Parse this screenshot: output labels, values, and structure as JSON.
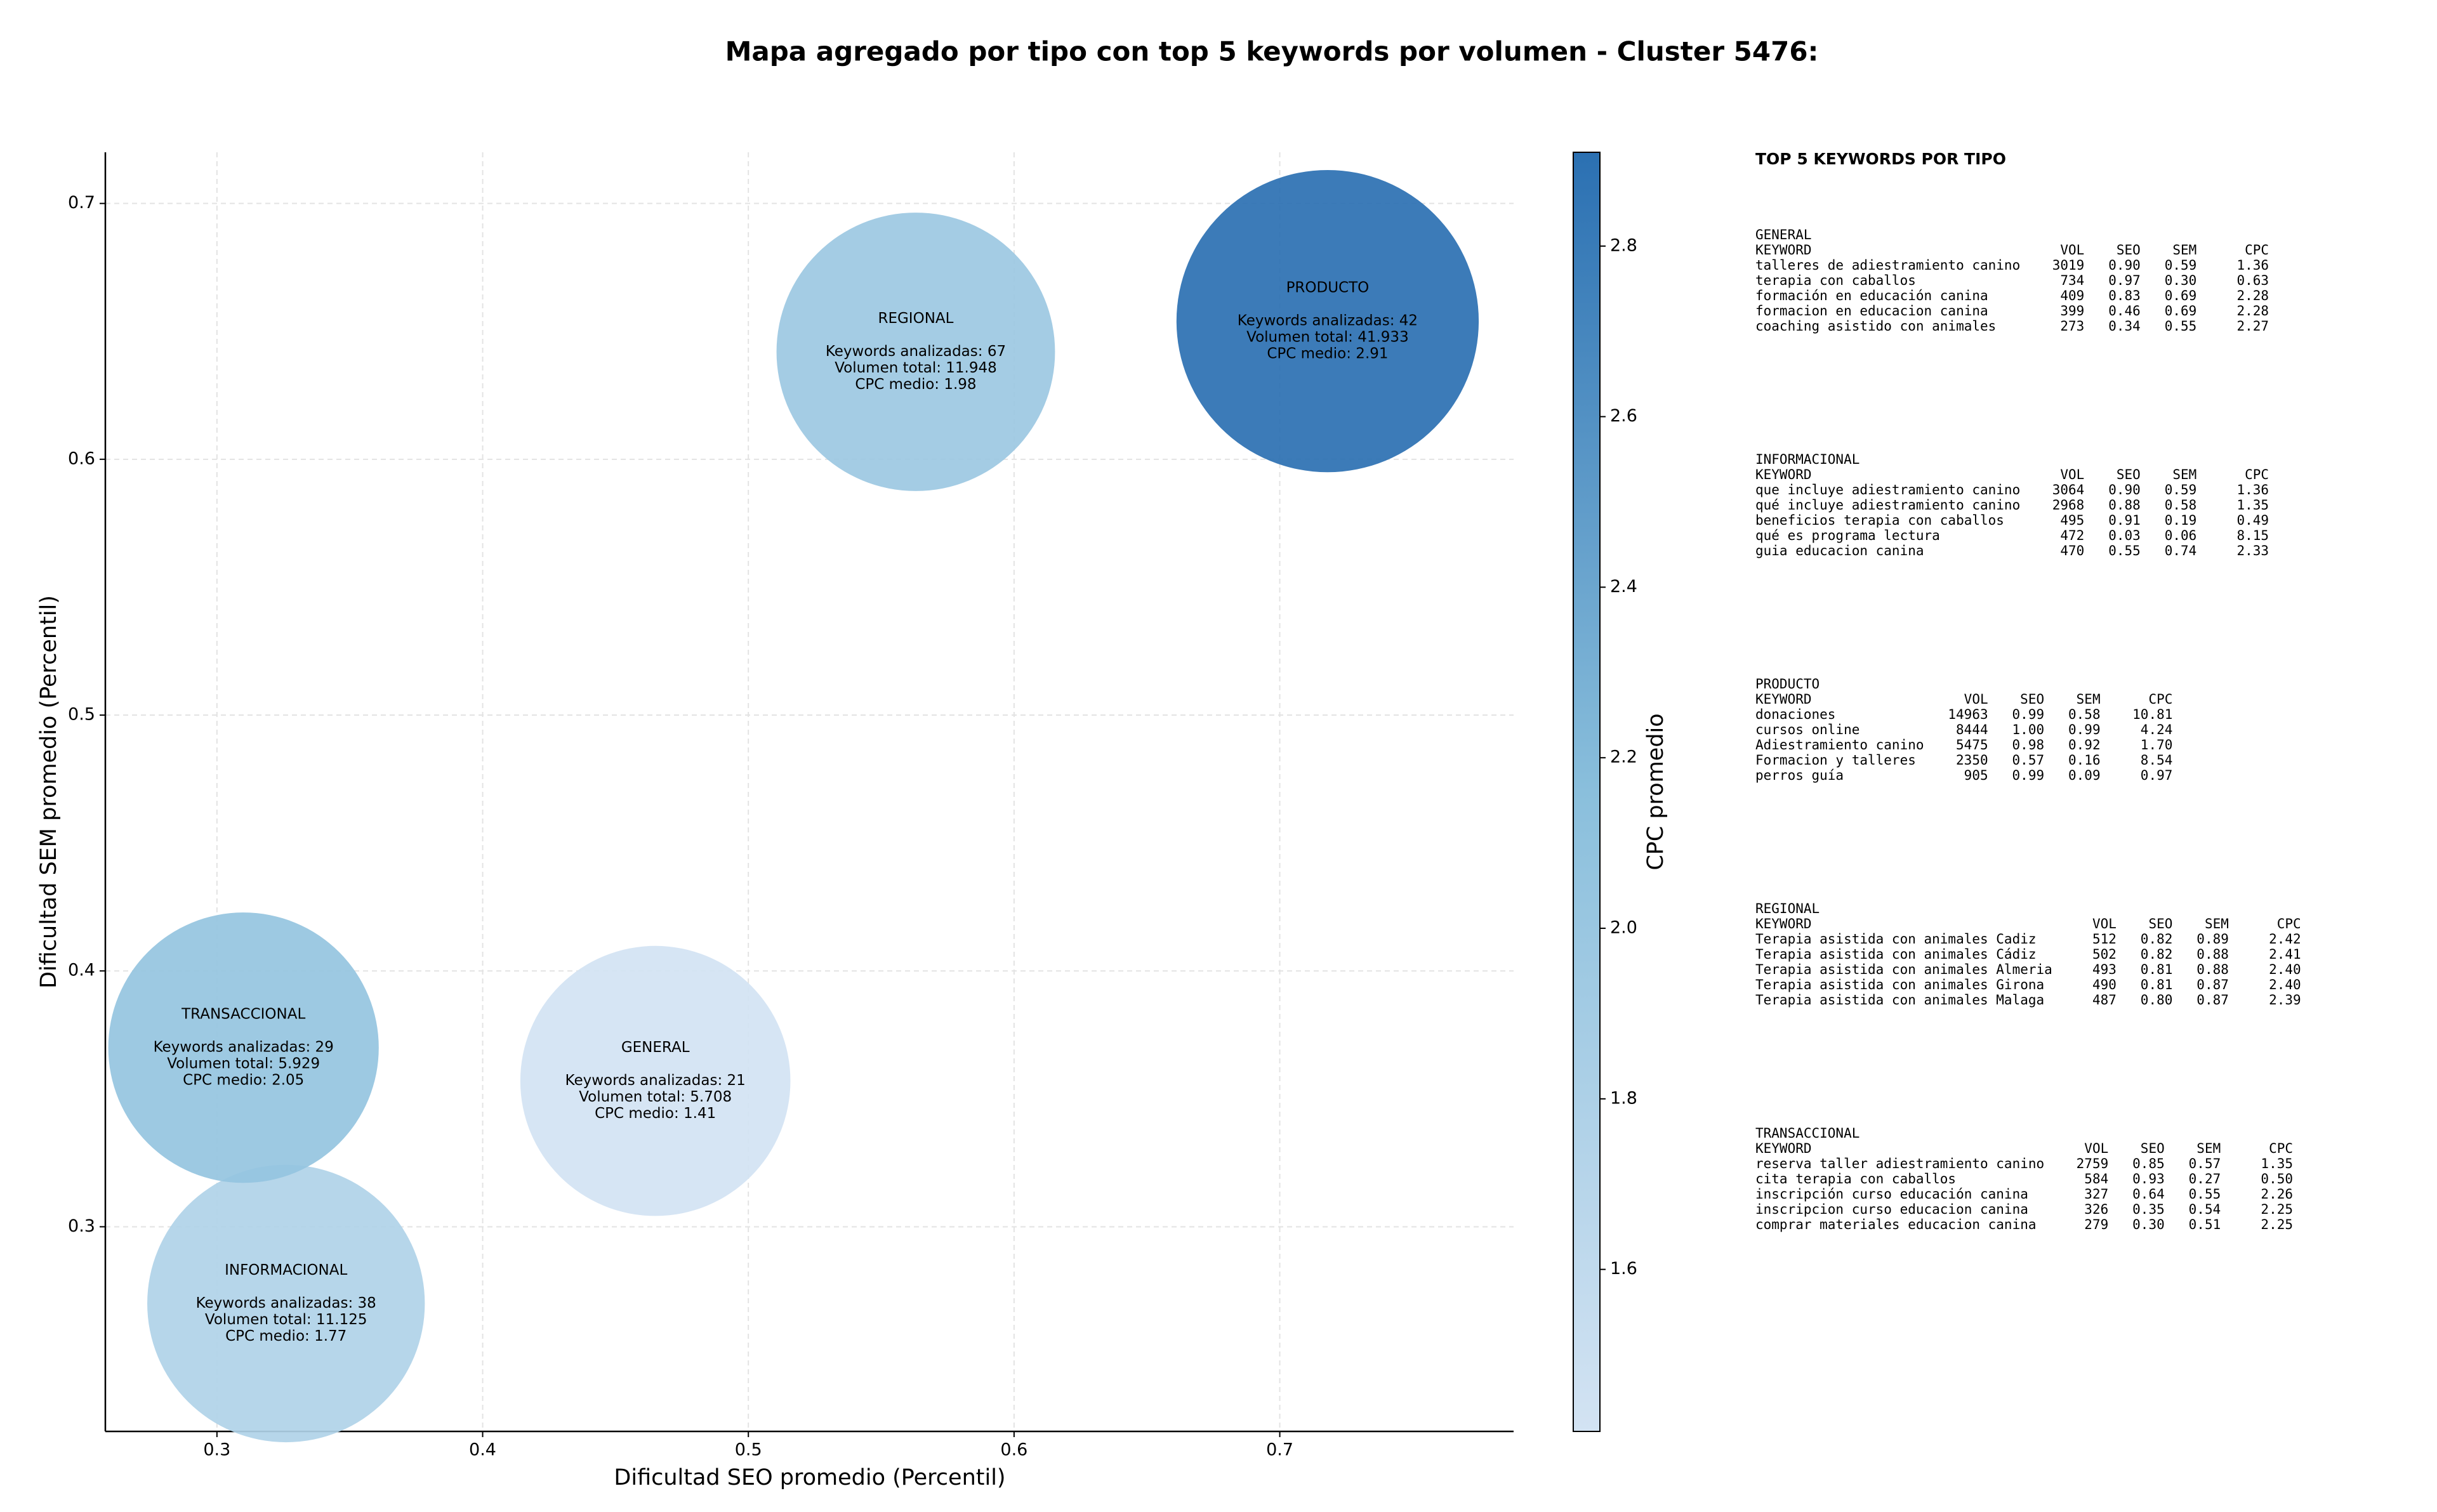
{
  "chart_data": {
    "type": "bubble",
    "title": "Mapa agregado por tipo con top 5 keywords por volumen - Cluster 5476:",
    "xlabel": "Dificultad SEO promedio (Percentil)",
    "ylabel": "Dificultad SEM promedio (Percentil)",
    "colorbar_label": "CPC promedio",
    "x": [
      0.563,
      0.718,
      0.31,
      0.465,
      0.326
    ],
    "y": [
      0.642,
      0.654,
      0.37,
      0.357,
      0.27
    ],
    "size": [
      11948,
      41933,
      5929,
      5708,
      11125
    ],
    "color_values": [
      1.98,
      2.91,
      2.05,
      1.41,
      1.77
    ],
    "annotations": [
      [
        "REGIONAL",
        "Keywords analizadas: 67",
        "Volumen total: 11.948",
        "CPC medio: 1.98"
      ],
      [
        "PRODUCTO",
        "Keywords analizadas: 42",
        "Volumen total: 41.933",
        "CPC medio: 2.91"
      ],
      [
        "TRANSACCIONAL",
        "Keywords analizadas: 29",
        "Volumen total: 5.929",
        "CPC medio: 2.05"
      ],
      [
        "GENERAL",
        "Keywords analizadas: 21",
        "Volumen total: 5.708",
        "CPC medio: 1.41"
      ],
      [
        "INFORMACIONAL",
        "Keywords analizadas: 38",
        "Volumen total: 11.125",
        "CPC medio: 1.77"
      ]
    ],
    "xlim": [
      0.258,
      0.788
    ],
    "ylim": [
      0.22,
      0.72
    ],
    "xticks": [
      0.3,
      0.4,
      0.5,
      0.6,
      0.7
    ],
    "yticks": [
      0.3,
      0.4,
      0.5,
      0.6,
      0.7
    ],
    "clim": [
      1.41,
      2.91
    ],
    "cticks": [
      1.6,
      1.8,
      {
        "value": 2,
        "label": "2.0"
      },
      2.2,
      2.4,
      2.6,
      2.8
    ],
    "colormap": [
      "#d3e3f3",
      "#8abfdc",
      "#2b70b2"
    ],
    "grid": true
  },
  "panel": {
    "title": "TOP 5 KEYWORDS POR TIPO",
    "groups": [
      {
        "name": "GENERAL",
        "header": [
          "KEYWORD",
          "VOL",
          "SEO",
          "SEM",
          "CPC"
        ],
        "rows": [
          [
            "talleres de adiestramiento canino",
            "3019",
            "0.90",
            "0.59",
            "1.36"
          ],
          [
            "terapia con caballos",
            "734",
            "0.97",
            "0.30",
            "0.63"
          ],
          [
            "formación en educación canina",
            "409",
            "0.83",
            "0.69",
            "2.28"
          ],
          [
            "formacion en educacion canina",
            "399",
            "0.46",
            "0.69",
            "2.28"
          ],
          [
            "coaching asistido con animales",
            "273",
            "0.34",
            "0.55",
            "2.27"
          ]
        ]
      },
      {
        "name": "INFORMACIONAL",
        "header": [
          "KEYWORD",
          "VOL",
          "SEO",
          "SEM",
          "CPC"
        ],
        "rows": [
          [
            "que incluye adiestramiento canino",
            "3064",
            "0.90",
            "0.59",
            "1.36"
          ],
          [
            "qué incluye adiestramiento canino",
            "2968",
            "0.88",
            "0.58",
            "1.35"
          ],
          [
            "beneficios terapia con caballos",
            "495",
            "0.91",
            "0.19",
            "0.49"
          ],
          [
            "qué es programa lectura",
            "472",
            "0.03",
            "0.06",
            "8.15"
          ],
          [
            "guia educacion canina",
            "470",
            "0.55",
            "0.74",
            "2.33"
          ]
        ]
      },
      {
        "name": "PRODUCTO",
        "header": [
          "KEYWORD",
          "VOL",
          "SEO",
          "SEM",
          "CPC"
        ],
        "rows": [
          [
            "donaciones",
            "14963",
            "0.99",
            "0.58",
            "10.81"
          ],
          [
            "cursos online",
            "8444",
            "1.00",
            "0.99",
            "4.24"
          ],
          [
            "Adiestramiento canino",
            "5475",
            "0.98",
            "0.92",
            "1.70"
          ],
          [
            "Formacion y talleres",
            "2350",
            "0.57",
            "0.16",
            "8.54"
          ],
          [
            "perros guía",
            "905",
            "0.99",
            "0.09",
            "0.97"
          ]
        ]
      },
      {
        "name": "REGIONAL",
        "header": [
          "KEYWORD",
          "VOL",
          "SEO",
          "SEM",
          "CPC"
        ],
        "rows": [
          [
            "Terapia asistida con animales Cadiz",
            "512",
            "0.82",
            "0.89",
            "2.42"
          ],
          [
            "Terapia asistida con animales Cádiz",
            "502",
            "0.82",
            "0.88",
            "2.41"
          ],
          [
            "Terapia asistida con animales Almeria",
            "493",
            "0.81",
            "0.88",
            "2.40"
          ],
          [
            "Terapia asistida con animales Girona",
            "490",
            "0.81",
            "0.87",
            "2.40"
          ],
          [
            "Terapia asistida con animales Malaga",
            "487",
            "0.80",
            "0.87",
            "2.39"
          ]
        ]
      },
      {
        "name": "TRANSACCIONAL",
        "header": [
          "KEYWORD",
          "VOL",
          "SEO",
          "SEM",
          "CPC"
        ],
        "rows": [
          [
            "reserva taller adiestramiento canino",
            "2759",
            "0.85",
            "0.57",
            "1.35"
          ],
          [
            "cita terapia con caballos",
            "584",
            "0.93",
            "0.27",
            "0.50"
          ],
          [
            "inscripción curso educación canina",
            "327",
            "0.64",
            "0.55",
            "2.26"
          ],
          [
            "inscripcion curso educacion canina",
            "326",
            "0.35",
            "0.54",
            "2.25"
          ],
          [
            "comprar materiales educacion canina",
            "279",
            "0.30",
            "0.51",
            "2.25"
          ]
        ]
      }
    ]
  }
}
